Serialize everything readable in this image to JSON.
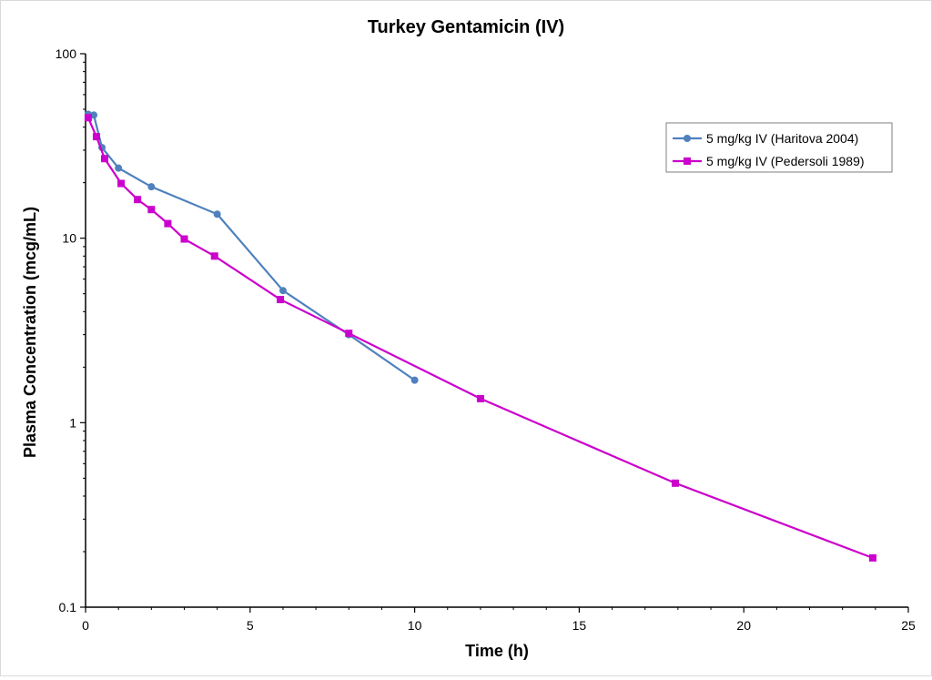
{
  "chart_data": {
    "type": "line",
    "title": "Turkey Gentamicin (IV)",
    "xlabel": "Time (h)",
    "ylabel": "Plasma Concentration (mcg/mL)",
    "xlim": [
      0,
      25
    ],
    "ylim": [
      0.1,
      100
    ],
    "yscale": "log",
    "grid": false,
    "legend_position": "top-right",
    "x_ticks": [
      0,
      5,
      10,
      15,
      20,
      25
    ],
    "x_tick_labels": [
      "0",
      "5",
      "10",
      "15",
      "20",
      "25"
    ],
    "y_ticks": [
      0.1,
      1,
      10,
      100
    ],
    "y_tick_labels": [
      "0.1",
      "1",
      "10",
      "100"
    ],
    "series": [
      {
        "name": "5 mg/kg IV (Haritova 2004)",
        "color": "#4f81bd",
        "marker": "circle",
        "x": [
          0.08,
          0.25,
          0.5,
          1,
          2,
          4,
          6,
          8,
          10
        ],
        "y": [
          47,
          46.5,
          31,
          24,
          19,
          13.5,
          5.2,
          3.0,
          1.7
        ]
      },
      {
        "name": "5 mg/kg IV (Pedersoli 1989)",
        "color": "#cc00cc",
        "marker": "square",
        "x": [
          0.08,
          0.33,
          0.58,
          1.08,
          1.58,
          2.0,
          2.5,
          3.0,
          3.92,
          5.92,
          8.0,
          12.0,
          17.92,
          23.92
        ],
        "y": [
          45,
          35.5,
          27,
          19.8,
          16.2,
          14.3,
          12.0,
          9.9,
          8.0,
          4.65,
          3.05,
          1.35,
          0.47,
          0.185
        ]
      }
    ]
  }
}
